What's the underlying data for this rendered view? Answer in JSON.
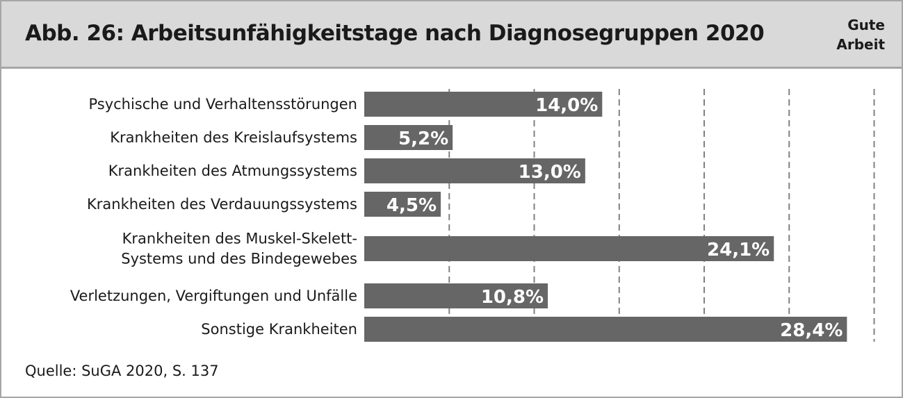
{
  "header": {
    "title": "Abb. 26: Arbeitsunfähigkeitstage nach Diagnosegruppen 2020",
    "brand_line1": "Gute",
    "brand_line2": "Arbeit"
  },
  "footer": {
    "source": "Quelle: SuGA 2020, S. 137"
  },
  "colors": {
    "bar": "#666666",
    "header_bg": "#d9d9d9",
    "border": "#a6a6a6",
    "grid": "#808080"
  },
  "chart_data": {
    "type": "bar",
    "orientation": "horizontal",
    "title": "Abb. 26: Arbeitsunfähigkeitstage nach Diagnosegruppen 2020",
    "categories": [
      [
        "Psychische und Verhaltensstörungen"
      ],
      [
        "Krankheiten des Kreislaufsystems"
      ],
      [
        "Krankheiten des Atmungssystems"
      ],
      [
        "Krankheiten des Verdauungssystems"
      ],
      [
        "Krankheiten des Muskel-Skelett-",
        "Systems und des Bindegewebes"
      ],
      [
        "Verletzungen, Vergiftungen und Unfälle"
      ],
      [
        "Sonstige Krankheiten"
      ]
    ],
    "values": [
      14.0,
      5.2,
      13.0,
      4.5,
      24.1,
      10.8,
      28.4
    ],
    "value_labels": [
      "14,0%",
      "5,2%",
      "13,0%",
      "4,5%",
      "24,1%",
      "10,8%",
      "28,4%"
    ],
    "xlim": [
      0,
      30
    ],
    "grid": true,
    "grid_step": 5,
    "grid_style": "dashed",
    "axis_tick_labels_shown": false
  }
}
